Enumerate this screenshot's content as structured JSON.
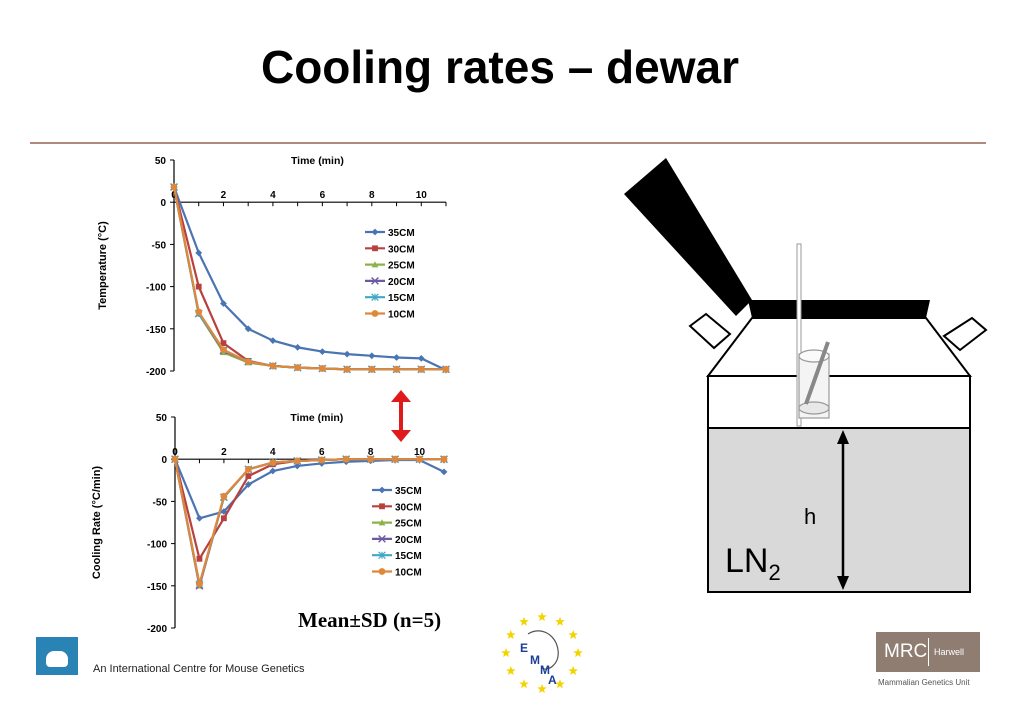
{
  "title": "Cooling rates – dewar",
  "caption": "Mean±SD (n=5)",
  "footer": {
    "text": "An International Centre for Mouse Genetics"
  },
  "logos": {
    "emma_letters": [
      "E",
      "M",
      "M",
      "A"
    ],
    "mrc": {
      "main": "MRC",
      "side": "Harwell",
      "sub": "Mammalian Genetics Unit"
    }
  },
  "diagram": {
    "label_h": "h",
    "label_ln": "LN",
    "label_ln_sub": "2"
  },
  "colors": {
    "35CM": "#4a74b2",
    "30CM": "#b8413e",
    "25CM": "#8eb24a",
    "20CM": "#6e58a0",
    "15CM": "#40a8c4",
    "10CM": "#e0873a",
    "rule": "#b08a7a",
    "arrow": "#e01a1a"
  },
  "chart_data": [
    {
      "type": "line",
      "title": "",
      "xlabel": "Time (min)",
      "ylabel": "Temperature (°C)",
      "xlim": [
        0,
        11
      ],
      "ylim": [
        -200,
        50
      ],
      "xticks": [
        0,
        2,
        4,
        6,
        8,
        10
      ],
      "yticks": [
        50,
        0,
        -50,
        -100,
        -150,
        -200
      ],
      "legend_position": "right",
      "x": [
        0,
        1,
        2,
        3,
        4,
        5,
        6,
        7,
        8,
        9,
        10,
        11
      ],
      "series": [
        {
          "name": "35CM",
          "marker": "diamond",
          "values": [
            18,
            -60,
            -120,
            -150,
            -164,
            -172,
            -177,
            -180,
            -182,
            -184,
            -185,
            -199
          ]
        },
        {
          "name": "30CM",
          "marker": "square",
          "values": [
            18,
            -100,
            -167,
            -188,
            -194,
            -196,
            -197,
            -198,
            -198,
            -198,
            -198,
            -198
          ]
        },
        {
          "name": "25CM",
          "marker": "triangle",
          "values": [
            18,
            -132,
            -178,
            -190,
            -194,
            -196,
            -197,
            -198,
            -198,
            -198,
            -198,
            -198
          ]
        },
        {
          "name": "20CM",
          "marker": "x",
          "values": [
            18,
            -132,
            -176,
            -189,
            -194,
            -196,
            -197,
            -198,
            -198,
            -198,
            -198,
            -198
          ]
        },
        {
          "name": "15CM",
          "marker": "star",
          "values": [
            18,
            -132,
            -175,
            -189,
            -194,
            -196,
            -197,
            -198,
            -198,
            -198,
            -198,
            -198
          ]
        },
        {
          "name": "10CM",
          "marker": "circle",
          "values": [
            18,
            -130,
            -175,
            -189,
            -194,
            -196,
            -197,
            -198,
            -198,
            -198,
            -198,
            -198
          ]
        }
      ]
    },
    {
      "type": "line",
      "title": "",
      "xlabel": "Time (min)",
      "ylabel": "Cooling Rate (°C/min)",
      "xlim": [
        0,
        11
      ],
      "ylim": [
        -200,
        50
      ],
      "xticks": [
        0,
        2,
        4,
        6,
        8,
        10
      ],
      "yticks": [
        50,
        0,
        -50,
        -100,
        -150,
        -200
      ],
      "legend_position": "right",
      "x": [
        0,
        1,
        2,
        3,
        4,
        5,
        6,
        7,
        8,
        9,
        10,
        11
      ],
      "series": [
        {
          "name": "35CM",
          "marker": "diamond",
          "values": [
            0,
            -70,
            -62,
            -30,
            -14,
            -8,
            -5,
            -3,
            -2,
            -1,
            -1,
            -15
          ]
        },
        {
          "name": "30CM",
          "marker": "square",
          "values": [
            0,
            -118,
            -70,
            -20,
            -6,
            -2,
            -1,
            0,
            0,
            0,
            0,
            0
          ]
        },
        {
          "name": "25CM",
          "marker": "triangle",
          "values": [
            0,
            -150,
            -45,
            -12,
            -4,
            -2,
            -1,
            0,
            0,
            0,
            0,
            0
          ]
        },
        {
          "name": "20CM",
          "marker": "x",
          "values": [
            0,
            -150,
            -45,
            -12,
            -4,
            -2,
            -1,
            0,
            0,
            0,
            0,
            0
          ]
        },
        {
          "name": "15CM",
          "marker": "star",
          "values": [
            0,
            -148,
            -45,
            -12,
            -4,
            -2,
            -1,
            0,
            0,
            0,
            0,
            0
          ]
        },
        {
          "name": "10CM",
          "marker": "circle",
          "values": [
            0,
            -148,
            -44,
            -12,
            -4,
            -2,
            -1,
            0,
            0,
            0,
            0,
            0
          ]
        }
      ]
    }
  ]
}
